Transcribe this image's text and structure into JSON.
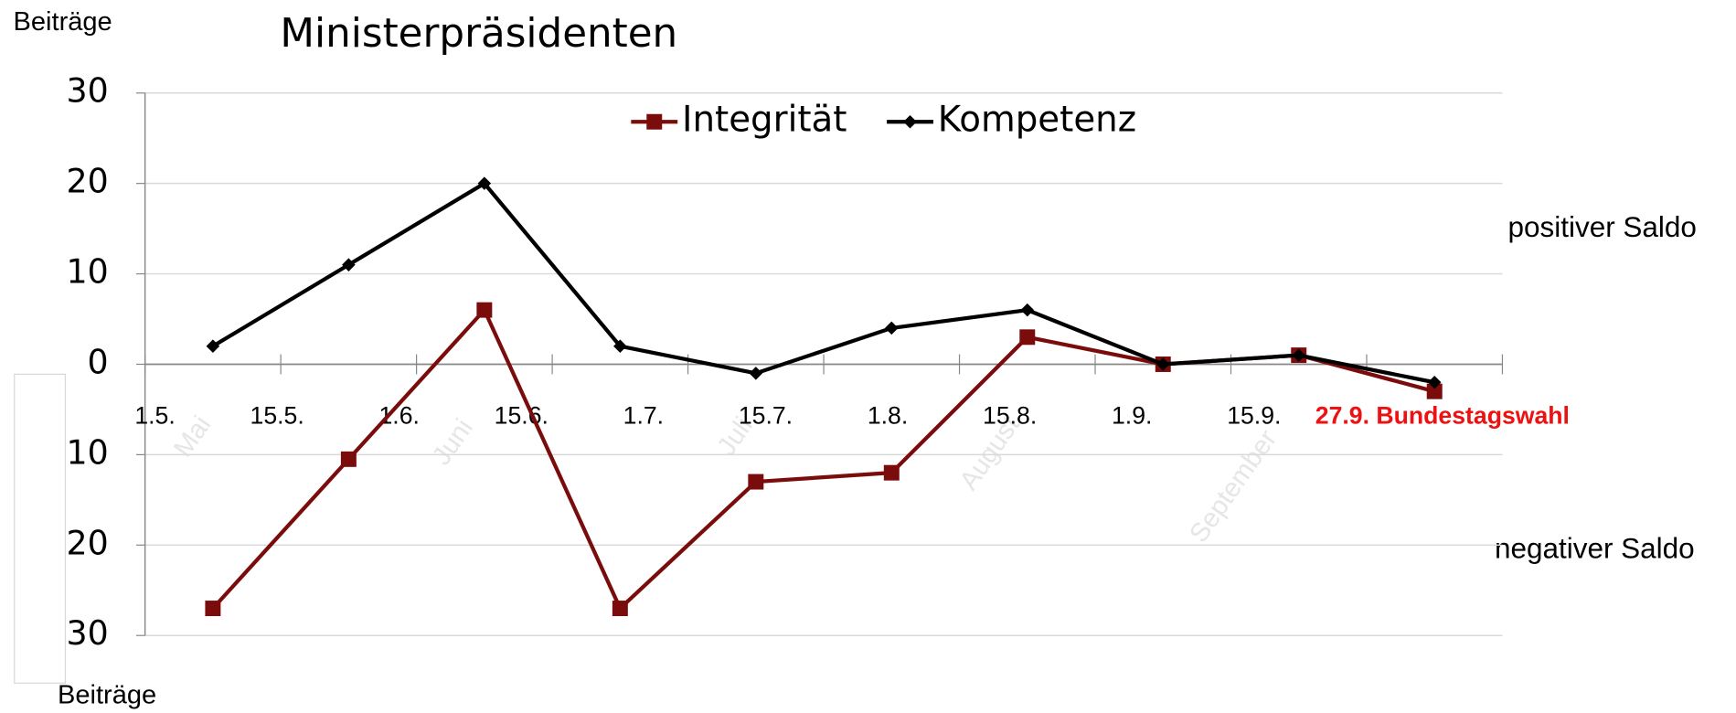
{
  "chart_data": {
    "type": "line",
    "title": "Ministerpräsidenten",
    "y_label_top": "Beiträge",
    "y_label_bottom": "Beiträge",
    "annotations": [
      "positiver Saldo",
      "negativer Saldo"
    ],
    "categories": [
      null,
      null,
      null,
      null,
      null,
      null,
      null,
      null,
      null,
      null
    ],
    "date_labels": [
      "1.5.",
      "15.5.",
      "1.6.",
      "15.6.",
      "1.7.",
      "15.7.",
      "1.8.",
      "15.8.",
      "1.9.",
      "15.9.",
      "27.9. Bundestagswahl"
    ],
    "month_labels": [
      "Mai",
      "Juni",
      "Juli",
      "August",
      "September"
    ],
    "series": [
      {
        "name": "Integrität",
        "color": "#7b0c0c",
        "marker": "square",
        "values": [
          -27,
          -10.5,
          6,
          -27,
          -13,
          -12,
          3,
          0,
          1,
          -3
        ]
      },
      {
        "name": "Kompetenz",
        "color": "#000000",
        "marker": "diamond",
        "values": [
          2,
          11,
          20,
          2,
          -1,
          4,
          6,
          0,
          1,
          -2
        ]
      }
    ],
    "ylim": [
      -30,
      30
    ],
    "yticks": [
      {
        "value": -30,
        "label": "30"
      },
      {
        "value": -20,
        "label": "20"
      },
      {
        "value": -10,
        "label": "10"
      },
      0,
      10,
      20,
      30
    ],
    "grid": true,
    "legend": "upper center"
  }
}
